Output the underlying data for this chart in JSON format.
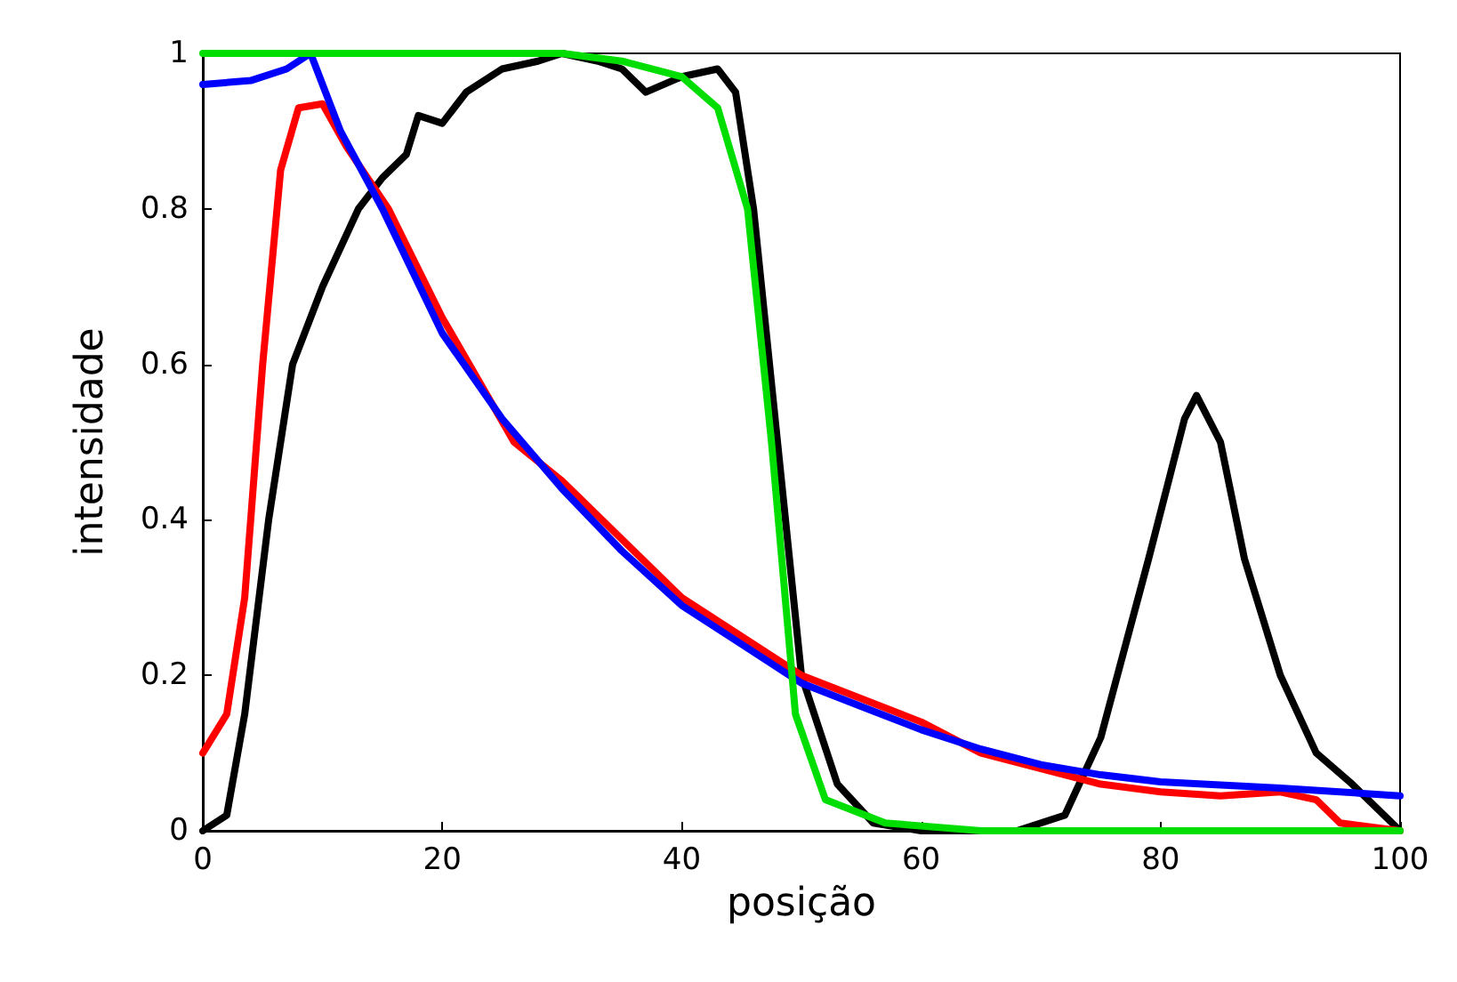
{
  "chart_data": {
    "type": "line",
    "xlabel": "posição",
    "ylabel": "intensidade",
    "xlim": [
      0,
      100
    ],
    "xticks": [
      0,
      20,
      40,
      60,
      80,
      100
    ],
    "ylim": [
      0,
      1
    ],
    "yticks": [
      0,
      0.2,
      0.4,
      0.6,
      0.8,
      1
    ],
    "grid": false,
    "marker": "none",
    "line_style": "solid",
    "series": [
      {
        "color": "#000000",
        "x": [
          0,
          2,
          3.5,
          5.5,
          7.5,
          10,
          13,
          15,
          17,
          18,
          20,
          22,
          25,
          28,
          30,
          33,
          35,
          37,
          40,
          43,
          44.5,
          46,
          48,
          50,
          53,
          56,
          60,
          68,
          72,
          75,
          79,
          82,
          83,
          85,
          87,
          90,
          93,
          96,
          100
        ],
        "values": [
          0,
          0.02,
          0.15,
          0.4,
          0.6,
          0.7,
          0.8,
          0.84,
          0.87,
          0.92,
          0.91,
          0.95,
          0.98,
          0.99,
          1,
          0.99,
          0.98,
          0.95,
          0.97,
          0.98,
          0.95,
          0.8,
          0.5,
          0.2,
          0.06,
          0.01,
          0,
          0,
          0.02,
          0.12,
          0.35,
          0.53,
          0.56,
          0.5,
          0.35,
          0.2,
          0.1,
          0.06,
          0
        ]
      },
      {
        "color": "#ff0000",
        "x": [
          0,
          2,
          3.5,
          5,
          6.5,
          8,
          10,
          12,
          15.5,
          20,
          26,
          30,
          40,
          50,
          60,
          65,
          70,
          75,
          80,
          85,
          90,
          93,
          95,
          100
        ],
        "values": [
          0.1,
          0.15,
          0.3,
          0.6,
          0.85,
          0.93,
          0.935,
          0.88,
          0.8,
          0.66,
          0.5,
          0.45,
          0.3,
          0.2,
          0.14,
          0.1,
          0.08,
          0.06,
          0.05,
          0.045,
          0.05,
          0.04,
          0.01,
          0
        ]
      },
      {
        "color": "#0000ff",
        "x": [
          0,
          4,
          7,
          9,
          11.5,
          15,
          20,
          25,
          30,
          35,
          40,
          45,
          50,
          55,
          60,
          65,
          70,
          75,
          80,
          90,
          100
        ],
        "values": [
          0.96,
          0.965,
          0.98,
          1,
          0.9,
          0.8,
          0.64,
          0.53,
          0.44,
          0.36,
          0.29,
          0.24,
          0.19,
          0.16,
          0.13,
          0.105,
          0.085,
          0.072,
          0.063,
          0.055,
          0.045
        ]
      },
      {
        "color": "#00dd00",
        "x": [
          0,
          10,
          20,
          30,
          35,
          40,
          43,
          45.5,
          47.5,
          49.5,
          52,
          57,
          65,
          80,
          100
        ],
        "values": [
          1,
          1,
          1,
          1,
          0.99,
          0.97,
          0.93,
          0.8,
          0.5,
          0.15,
          0.04,
          0.01,
          0,
          0,
          0
        ]
      }
    ]
  }
}
